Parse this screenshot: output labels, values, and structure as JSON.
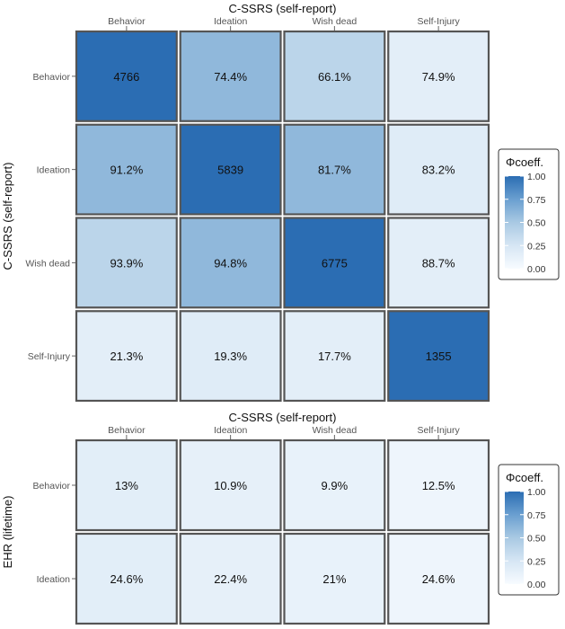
{
  "chart_data": [
    {
      "type": "heatmap",
      "title": "C-SSRS (self-report)",
      "xlabel": "C-SSRS (self-report)",
      "ylabel": "C-SSRS (self-report)",
      "x_categories": [
        "Behavior",
        "Ideation",
        "Wish dead",
        "Self-Injury"
      ],
      "y_categories": [
        "Behavior",
        "Ideation",
        "Wish dead",
        "Self-Injury"
      ],
      "cells": [
        [
          {
            "label": "4766",
            "phi": 1.0
          },
          {
            "label": "74.4%",
            "phi": 0.6
          },
          {
            "label": "66.1%",
            "phi": 0.4
          },
          {
            "label": "74.9%",
            "phi": 0.15
          }
        ],
        [
          {
            "label": "91.2%",
            "phi": 0.6
          },
          {
            "label": "5839",
            "phi": 1.0
          },
          {
            "label": "81.7%",
            "phi": 0.6
          },
          {
            "label": "83.2%",
            "phi": 0.18
          }
        ],
        [
          {
            "label": "93.9%",
            "phi": 0.4
          },
          {
            "label": "94.8%",
            "phi": 0.6
          },
          {
            "label": "6775",
            "phi": 1.0
          },
          {
            "label": "88.7%",
            "phi": 0.15
          }
        ],
        [
          {
            "label": "21.3%",
            "phi": 0.15
          },
          {
            "label": "19.3%",
            "phi": 0.18
          },
          {
            "label": "17.7%",
            "phi": 0.15
          },
          {
            "label": "1355",
            "phi": 1.0
          }
        ]
      ],
      "legend": {
        "title": "Φcoeff.",
        "ticks": [
          "1.00",
          "0.75",
          "0.50",
          "0.25",
          "0.00"
        ],
        "range": [
          0,
          1
        ]
      }
    },
    {
      "type": "heatmap",
      "title": "C-SSRS (self-report)",
      "xlabel": "C-SSRS (self-report)",
      "ylabel": "EHR (lifetime)",
      "x_categories": [
        "Behavior",
        "Ideation",
        "Wish dead",
        "Self-Injury"
      ],
      "y_categories": [
        "Behavior",
        "Ideation"
      ],
      "cells": [
        [
          {
            "label": "13%",
            "phi": 0.16
          },
          {
            "label": "10.9%",
            "phi": 0.13
          },
          {
            "label": "9.9%",
            "phi": 0.11
          },
          {
            "label": "12.5%",
            "phi": 0.07
          }
        ],
        [
          {
            "label": "24.6%",
            "phi": 0.16
          },
          {
            "label": "22.4%",
            "phi": 0.13
          },
          {
            "label": "21%",
            "phi": 0.11
          },
          {
            "label": "24.6%",
            "phi": 0.07
          }
        ]
      ],
      "legend": {
        "title": "Φcoeff.",
        "ticks": [
          "1.00",
          "0.75",
          "0.50",
          "0.25",
          "0.00"
        ],
        "range": [
          0,
          1
        ]
      }
    }
  ],
  "colors": {
    "low": "#f7fbff",
    "high": "#2b6db3",
    "border": "#555555"
  }
}
